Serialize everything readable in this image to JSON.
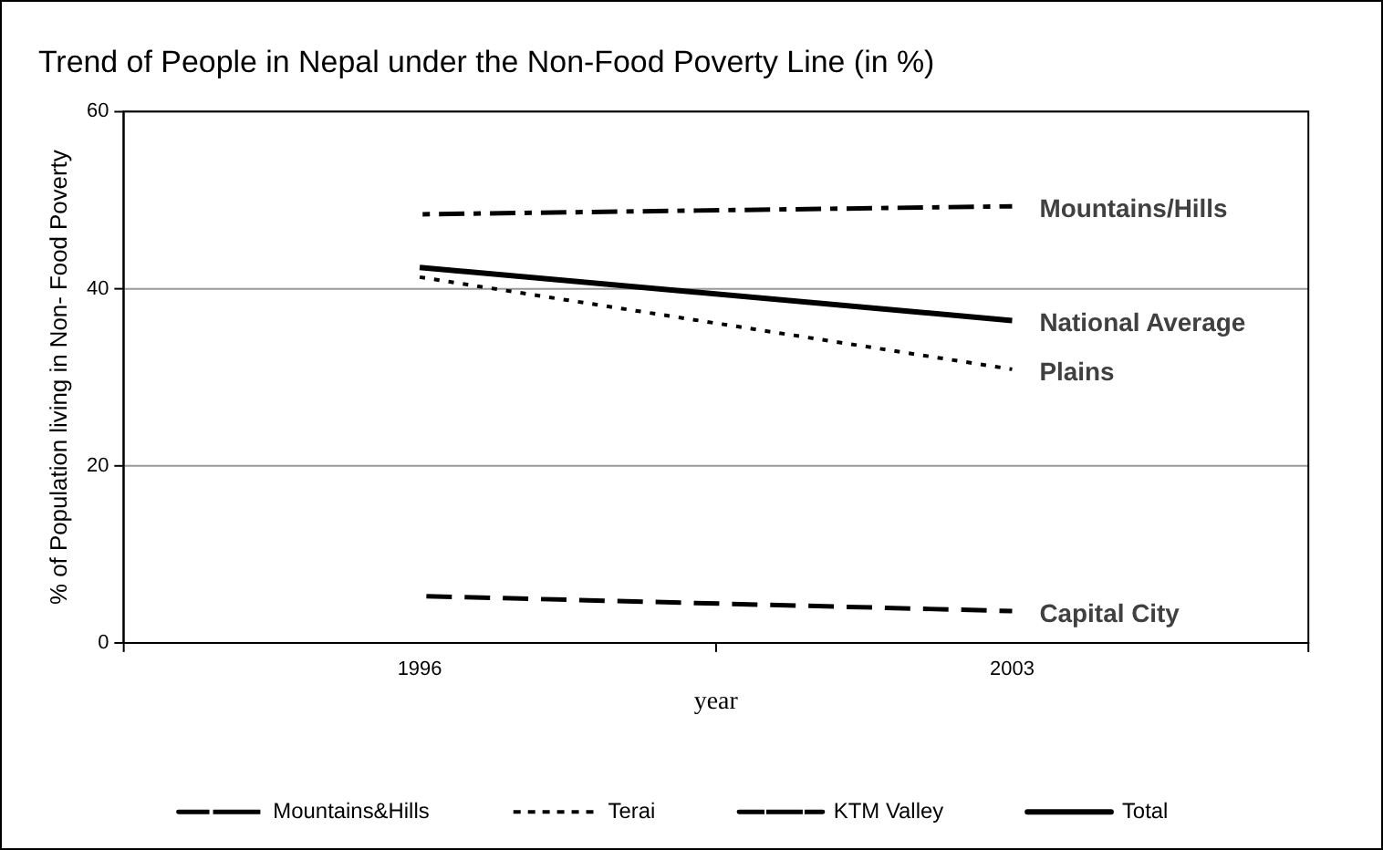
{
  "chart_data": {
    "type": "line",
    "title": "Trend of People in Nepal under the Non-Food Poverty Line (in %)",
    "xlabel": "year",
    "ylabel": "% of Population living in Non- Food Poverty",
    "categories": [
      "1996",
      "2003"
    ],
    "series": [
      {
        "name": "Mountains&Hills",
        "color": "#000000",
        "line_style": "dashdot",
        "values": [
          48.4,
          49.3
        ]
      },
      {
        "name": "Terai",
        "color": "#000000",
        "line_style": "dotted",
        "values": [
          41.3,
          30.9
        ]
      },
      {
        "name": "KTM Valley",
        "color": "#000000",
        "line_style": "dashed",
        "values": [
          5.3,
          3.6
        ]
      },
      {
        "name": "Total",
        "color": "#000000",
        "line_style": "solid",
        "values": [
          42.4,
          36.4
        ]
      }
    ],
    "annotations": [
      {
        "text": "Mountains/Hills",
        "x": "2003",
        "y": 49.3
      },
      {
        "text": "National Average",
        "x": "2003",
        "y": 36.4
      },
      {
        "text": "Plains",
        "x": "2003",
        "y": 30.9
      },
      {
        "text": "Capital City",
        "x": "2003",
        "y": 3.6
      }
    ],
    "ylim": [
      0,
      60
    ],
    "yticks": [
      0,
      20,
      40,
      60
    ],
    "grid": "y",
    "legend": "bottom",
    "marker": "none"
  }
}
